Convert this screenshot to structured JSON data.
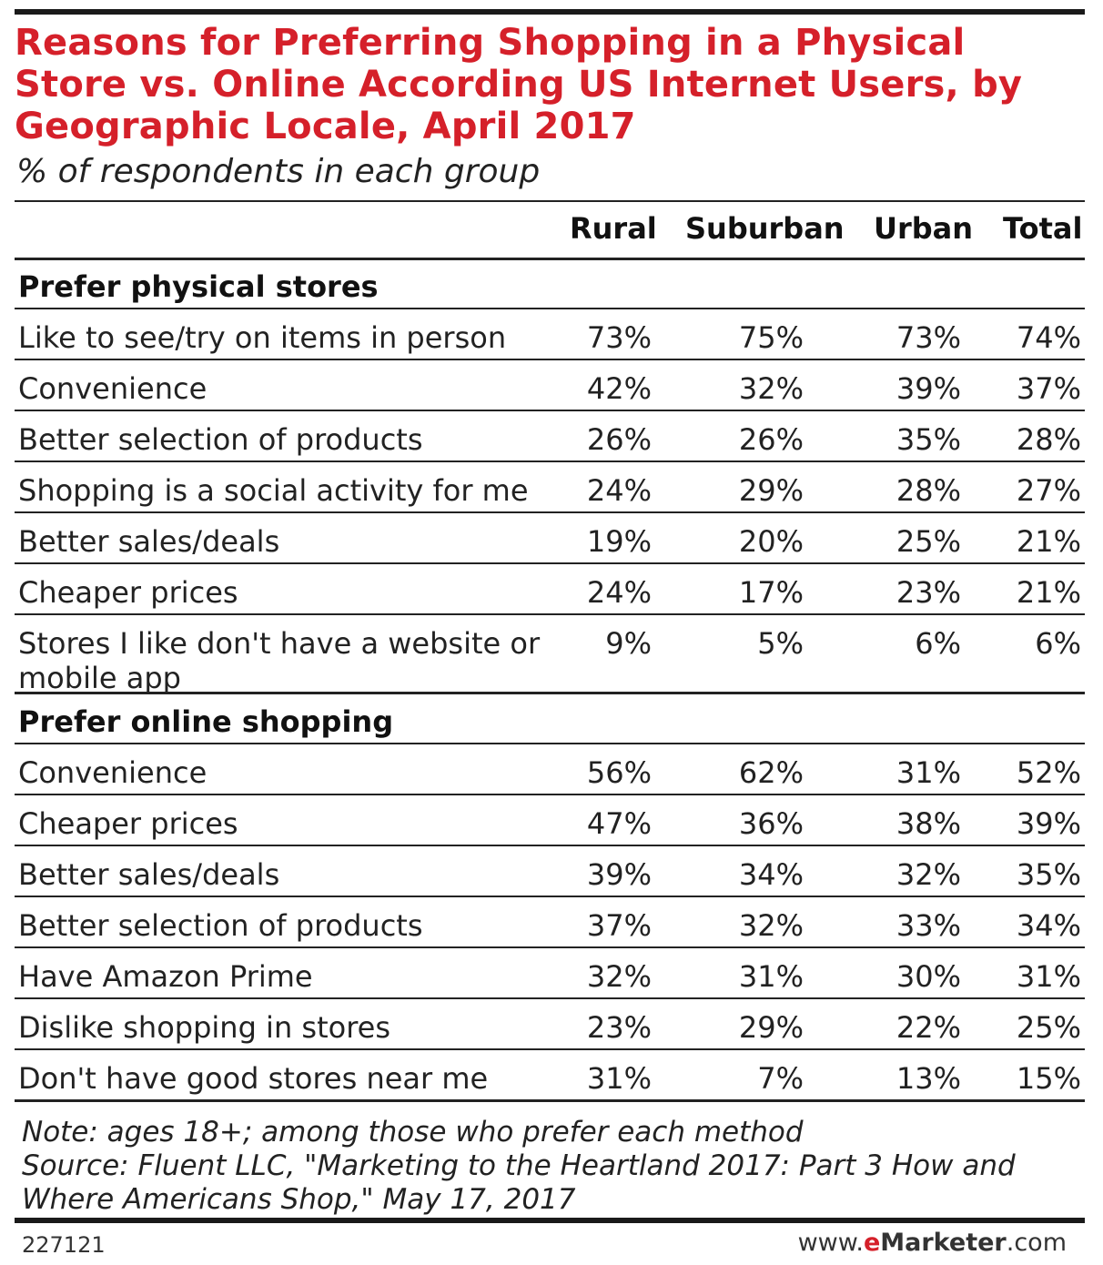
{
  "chart_data": {
    "type": "table",
    "title": "Reasons for Preferring Shopping in a Physical Store vs. Online According US Internet Users, by Geographic Locale, April 2017",
    "subtitle": "% of respondents in each group",
    "columns": [
      "Rural",
      "Suburban",
      "Urban",
      "Total"
    ],
    "sections": [
      {
        "name": "Prefer physical stores",
        "rows": [
          {
            "label": "Like to see/try on items in person",
            "values": [
              "73%",
              "75%",
              "73%",
              "74%"
            ]
          },
          {
            "label": "Convenience",
            "values": [
              "42%",
              "32%",
              "39%",
              "37%"
            ]
          },
          {
            "label": "Better selection of products",
            "values": [
              "26%",
              "26%",
              "35%",
              "28%"
            ]
          },
          {
            "label": "Shopping is a social activity for me",
            "values": [
              "24%",
              "29%",
              "28%",
              "27%"
            ]
          },
          {
            "label": "Better sales/deals",
            "values": [
              "19%",
              "20%",
              "25%",
              "21%"
            ]
          },
          {
            "label": "Cheaper prices",
            "values": [
              "24%",
              "17%",
              "23%",
              "21%"
            ]
          },
          {
            "label": "Stores I like don't have a website or mobile app",
            "values": [
              "9%",
              "5%",
              "6%",
              "6%"
            ]
          }
        ]
      },
      {
        "name": "Prefer online shopping",
        "rows": [
          {
            "label": "Convenience",
            "values": [
              "56%",
              "62%",
              "31%",
              "52%"
            ]
          },
          {
            "label": "Cheaper prices",
            "values": [
              "47%",
              "36%",
              "38%",
              "39%"
            ]
          },
          {
            "label": "Better sales/deals",
            "values": [
              "39%",
              "34%",
              "32%",
              "35%"
            ]
          },
          {
            "label": "Better selection of products",
            "values": [
              "37%",
              "32%",
              "33%",
              "34%"
            ]
          },
          {
            "label": "Have Amazon Prime",
            "values": [
              "32%",
              "31%",
              "30%",
              "31%"
            ]
          },
          {
            "label": "Dislike shopping in stores",
            "values": [
              "23%",
              "29%",
              "22%",
              "25%"
            ]
          },
          {
            "label": "Don't have good stores near me",
            "values": [
              "31%",
              "7%",
              "13%",
              "15%"
            ]
          }
        ]
      }
    ],
    "note": "Note: ages 18+; among those who prefer each method",
    "source": "Source: Fluent LLC, \"Marketing to the Heartland 2017: Part 3 How and Where Americans Shop,\" May 17, 2017",
    "chart_id": "227121",
    "brand": {
      "prefix": "www.",
      "accent": "e",
      "name": "Marketer",
      "suffix": ".com"
    }
  },
  "colors": {
    "title": "#d5202a",
    "text": "#222222",
    "rule": "#1a1a1a"
  }
}
